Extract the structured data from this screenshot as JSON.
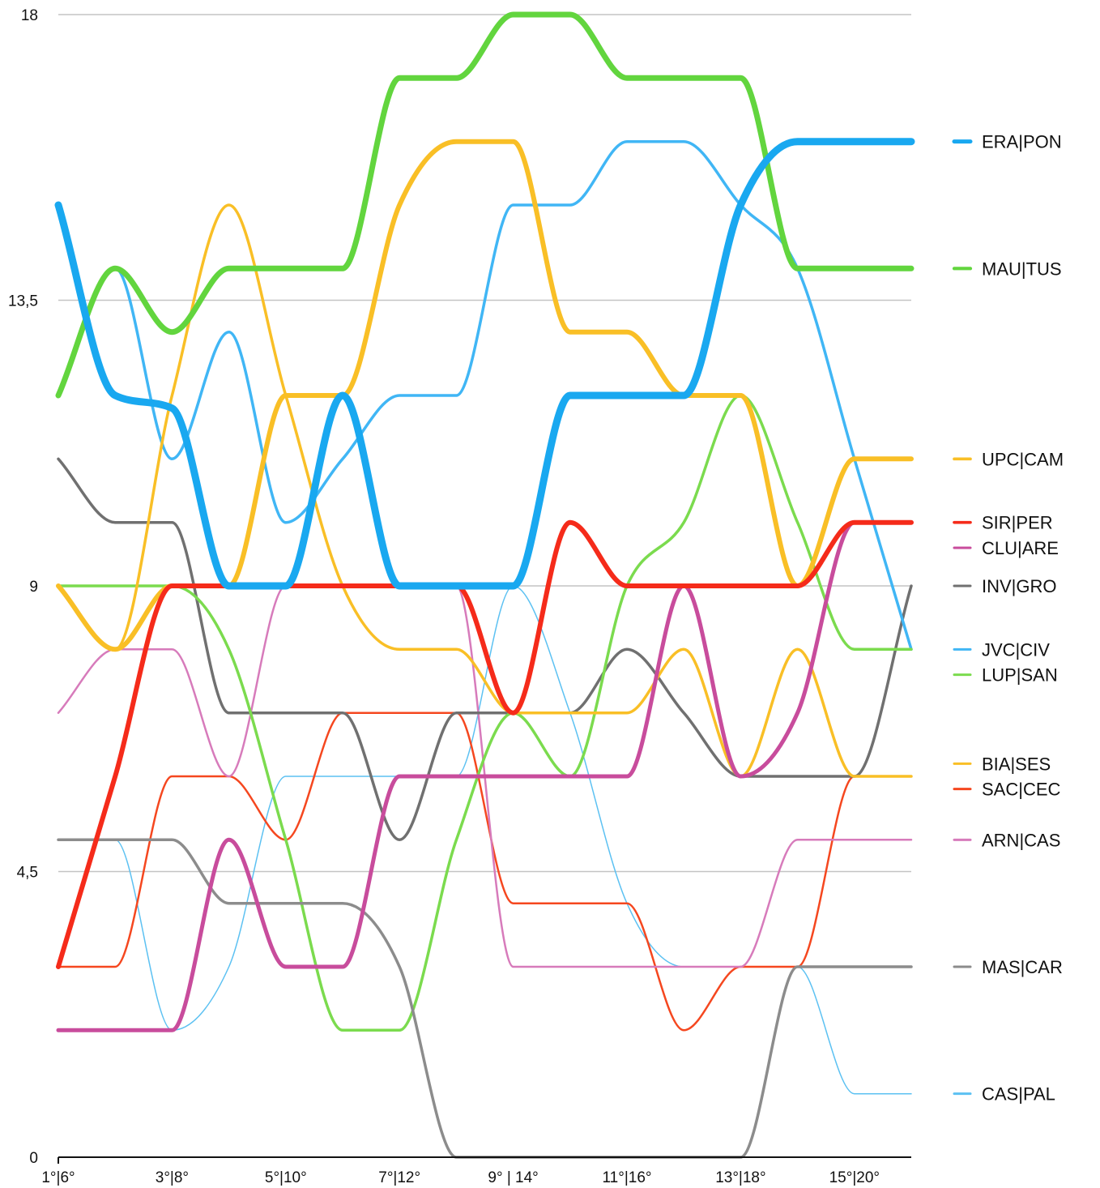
{
  "chart_data": {
    "type": "line",
    "title": "",
    "xlabel": "",
    "ylabel": "",
    "ylim": [
      0,
      18
    ],
    "yticks": [
      "0",
      "4,5",
      "9",
      "13,5",
      "18"
    ],
    "ytick_values": [
      0,
      4.5,
      9,
      13.5,
      18
    ],
    "categories": [
      "1°|6°",
      "",
      "3°|8°",
      "",
      "5°|10°",
      "",
      "7°|12°",
      "",
      "9° | 14°",
      "",
      "11°|16°",
      "",
      "13°|18°",
      "",
      "15°|20°",
      ""
    ],
    "grid": true,
    "legend": "right",
    "series": [
      {
        "name": "ERA|PON",
        "color": "#19a8f0",
        "width": 9,
        "label_value": 16.0,
        "values": [
          15.0,
          12.0,
          11.8,
          9.0,
          9.0,
          12.0,
          9.0,
          9.0,
          9.0,
          12.0,
          12.0,
          12.0,
          15.0,
          16.0,
          16.0,
          16.0
        ]
      },
      {
        "name": "MAU|TUS",
        "color": "#62d53e",
        "width": 7,
        "label_value": 14.0,
        "values": [
          12.0,
          14.0,
          13.0,
          14.0,
          14.0,
          14.0,
          17.0,
          17.0,
          18.0,
          18.0,
          17.0,
          17.0,
          17.0,
          14.0,
          14.0,
          14.0
        ]
      },
      {
        "name": "UPC|CAM",
        "color": "#f9bf26",
        "width": 6,
        "label_value": 11.0,
        "values": [
          9.0,
          8.0,
          9.0,
          9.0,
          12.0,
          12.0,
          15.0,
          16.0,
          16.0,
          13.0,
          13.0,
          12.0,
          12.0,
          9.0,
          11.0,
          11.0
        ]
      },
      {
        "name": "SIR|PER",
        "color": "#f52b1a",
        "width": 6,
        "label_value": 10.0,
        "values": [
          3.0,
          6.0,
          9.0,
          9.0,
          9.0,
          9.0,
          9.0,
          9.0,
          7.0,
          10.0,
          9.0,
          9.0,
          9.0,
          9.0,
          10.0,
          10.0
        ]
      },
      {
        "name": "CLU|ARE",
        "color": "#c84c9c",
        "width": 5,
        "label_value": 9.6,
        "values": [
          2.0,
          2.0,
          2.0,
          5.0,
          3.0,
          3.0,
          6.0,
          6.0,
          6.0,
          6.0,
          6.0,
          9.0,
          6.0,
          7.0,
          10.0,
          10.0
        ]
      },
      {
        "name": "INV|GRO",
        "color": "#707070",
        "width": 3.5,
        "label_value": 9.0,
        "values": [
          11.0,
          10.0,
          10.0,
          7.0,
          7.0,
          7.0,
          5.0,
          7.0,
          7.0,
          7.0,
          8.0,
          7.0,
          6.0,
          6.0,
          6.0,
          9.0
        ]
      },
      {
        "name": "JVC|CIV",
        "color": "#40b6f5",
        "width": 3.5,
        "label_value": 8.0,
        "values": [
          12.0,
          14.0,
          11.0,
          13.0,
          10.0,
          11.0,
          12.0,
          12.0,
          15.0,
          15.0,
          16.0,
          16.0,
          15.0,
          14.0,
          11.0,
          8.0
        ]
      },
      {
        "name": "LUP|SAN",
        "color": "#7bdb4e",
        "width": 3.5,
        "label_value": 7.6,
        "values": [
          9.0,
          9.0,
          9.0,
          8.0,
          5.0,
          2.0,
          2.0,
          5.0,
          7.0,
          6.0,
          9.0,
          10.0,
          12.0,
          10.0,
          8.0,
          8.0
        ]
      },
      {
        "name": "BIA|SES",
        "color": "#f9bf26",
        "width": 3.5,
        "label_value": 6.2,
        "values": [
          9.0,
          8.0,
          12.0,
          15.0,
          12.0,
          9.0,
          8.0,
          8.0,
          7.0,
          7.0,
          7.0,
          8.0,
          6.0,
          8.0,
          6.0,
          6.0
        ]
      },
      {
        "name": "SAC|CEC",
        "color": "#f5471f",
        "width": 2.5,
        "label_value": 5.8,
        "values": [
          3.0,
          3.0,
          6.0,
          6.0,
          5.0,
          7.0,
          7.0,
          7.0,
          4.0,
          4.0,
          4.0,
          2.0,
          3.0,
          3.0,
          6.0,
          6.0
        ]
      },
      {
        "name": "ARN|CAS",
        "color": "#d77bbb",
        "width": 2.5,
        "label_value": 5.0,
        "values": [
          7.0,
          8.0,
          8.0,
          6.0,
          9.0,
          9.0,
          9.0,
          9.0,
          3.0,
          3.0,
          3.0,
          3.0,
          3.0,
          5.0,
          5.0,
          5.0
        ]
      },
      {
        "name": "MAS|CAR",
        "color": "#8c8c8c",
        "width": 3.5,
        "label_value": 3.0,
        "values": [
          5.0,
          5.0,
          5.0,
          4.0,
          4.0,
          4.0,
          3.0,
          0.0,
          0.0,
          0.0,
          0.0,
          0.0,
          0.0,
          3.0,
          3.0,
          3.0
        ]
      },
      {
        "name": "CAS|PAL",
        "color": "#5cc1f2",
        "width": 1.5,
        "label_value": 1.0,
        "values": [
          5.0,
          5.0,
          2.0,
          3.0,
          6.0,
          6.0,
          6.0,
          6.0,
          9.0,
          7.0,
          4.0,
          3.0,
          3.0,
          3.0,
          1.0,
          1.0
        ]
      }
    ]
  }
}
